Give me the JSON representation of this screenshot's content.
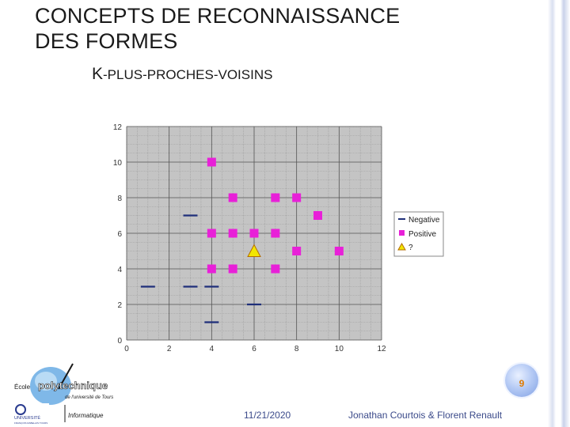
{
  "slide": {
    "title_line1": "CONCEPTS DE RECONNAISSANCE",
    "title_line2": "DES FORMES",
    "subtitle_lead": "K",
    "subtitle_rest": "-PLUS-PROCHES-VOISINS",
    "page_number": "9",
    "date": "11/21/2020",
    "author": "Jonathan Courtois & Florent Renault"
  },
  "logo": {
    "ecole": "École",
    "name": "polytechnique",
    "tagline": "de l'université de Tours",
    "dept": "Informatique",
    "univ": "UNIVERSITÉ",
    "univ_sub": "FRANÇOIS RABELAIS TOURS"
  },
  "colors": {
    "negative": "#1f2f7a",
    "positive": "#e820d8",
    "unknown": "#f2e600",
    "grid_bg": "#c4c4c4"
  },
  "chart_data": {
    "type": "scatter",
    "xlim": [
      0,
      12
    ],
    "ylim": [
      0,
      12
    ],
    "xticks": [
      0,
      2,
      4,
      6,
      8,
      10,
      12
    ],
    "yticks": [
      0,
      2,
      4,
      6,
      8,
      10,
      12
    ],
    "grid": true,
    "legend_position": "right",
    "series": [
      {
        "name": "Negative",
        "marker": "dash",
        "points": [
          [
            1,
            3
          ],
          [
            3,
            7
          ],
          [
            3,
            3
          ],
          [
            4,
            3
          ],
          [
            4,
            1
          ],
          [
            6,
            2
          ]
        ]
      },
      {
        "name": "Positive",
        "marker": "square",
        "points": [
          [
            4,
            10
          ],
          [
            5,
            8
          ],
          [
            7,
            8
          ],
          [
            8,
            8
          ],
          [
            9,
            7
          ],
          [
            4,
            6
          ],
          [
            5,
            6
          ],
          [
            6,
            6
          ],
          [
            7,
            6
          ],
          [
            8,
            5
          ],
          [
            10,
            5
          ],
          [
            4,
            4
          ],
          [
            5,
            4
          ],
          [
            7,
            4
          ]
        ]
      },
      {
        "name": "?",
        "marker": "triangle",
        "points": [
          [
            6,
            5
          ]
        ]
      }
    ]
  }
}
